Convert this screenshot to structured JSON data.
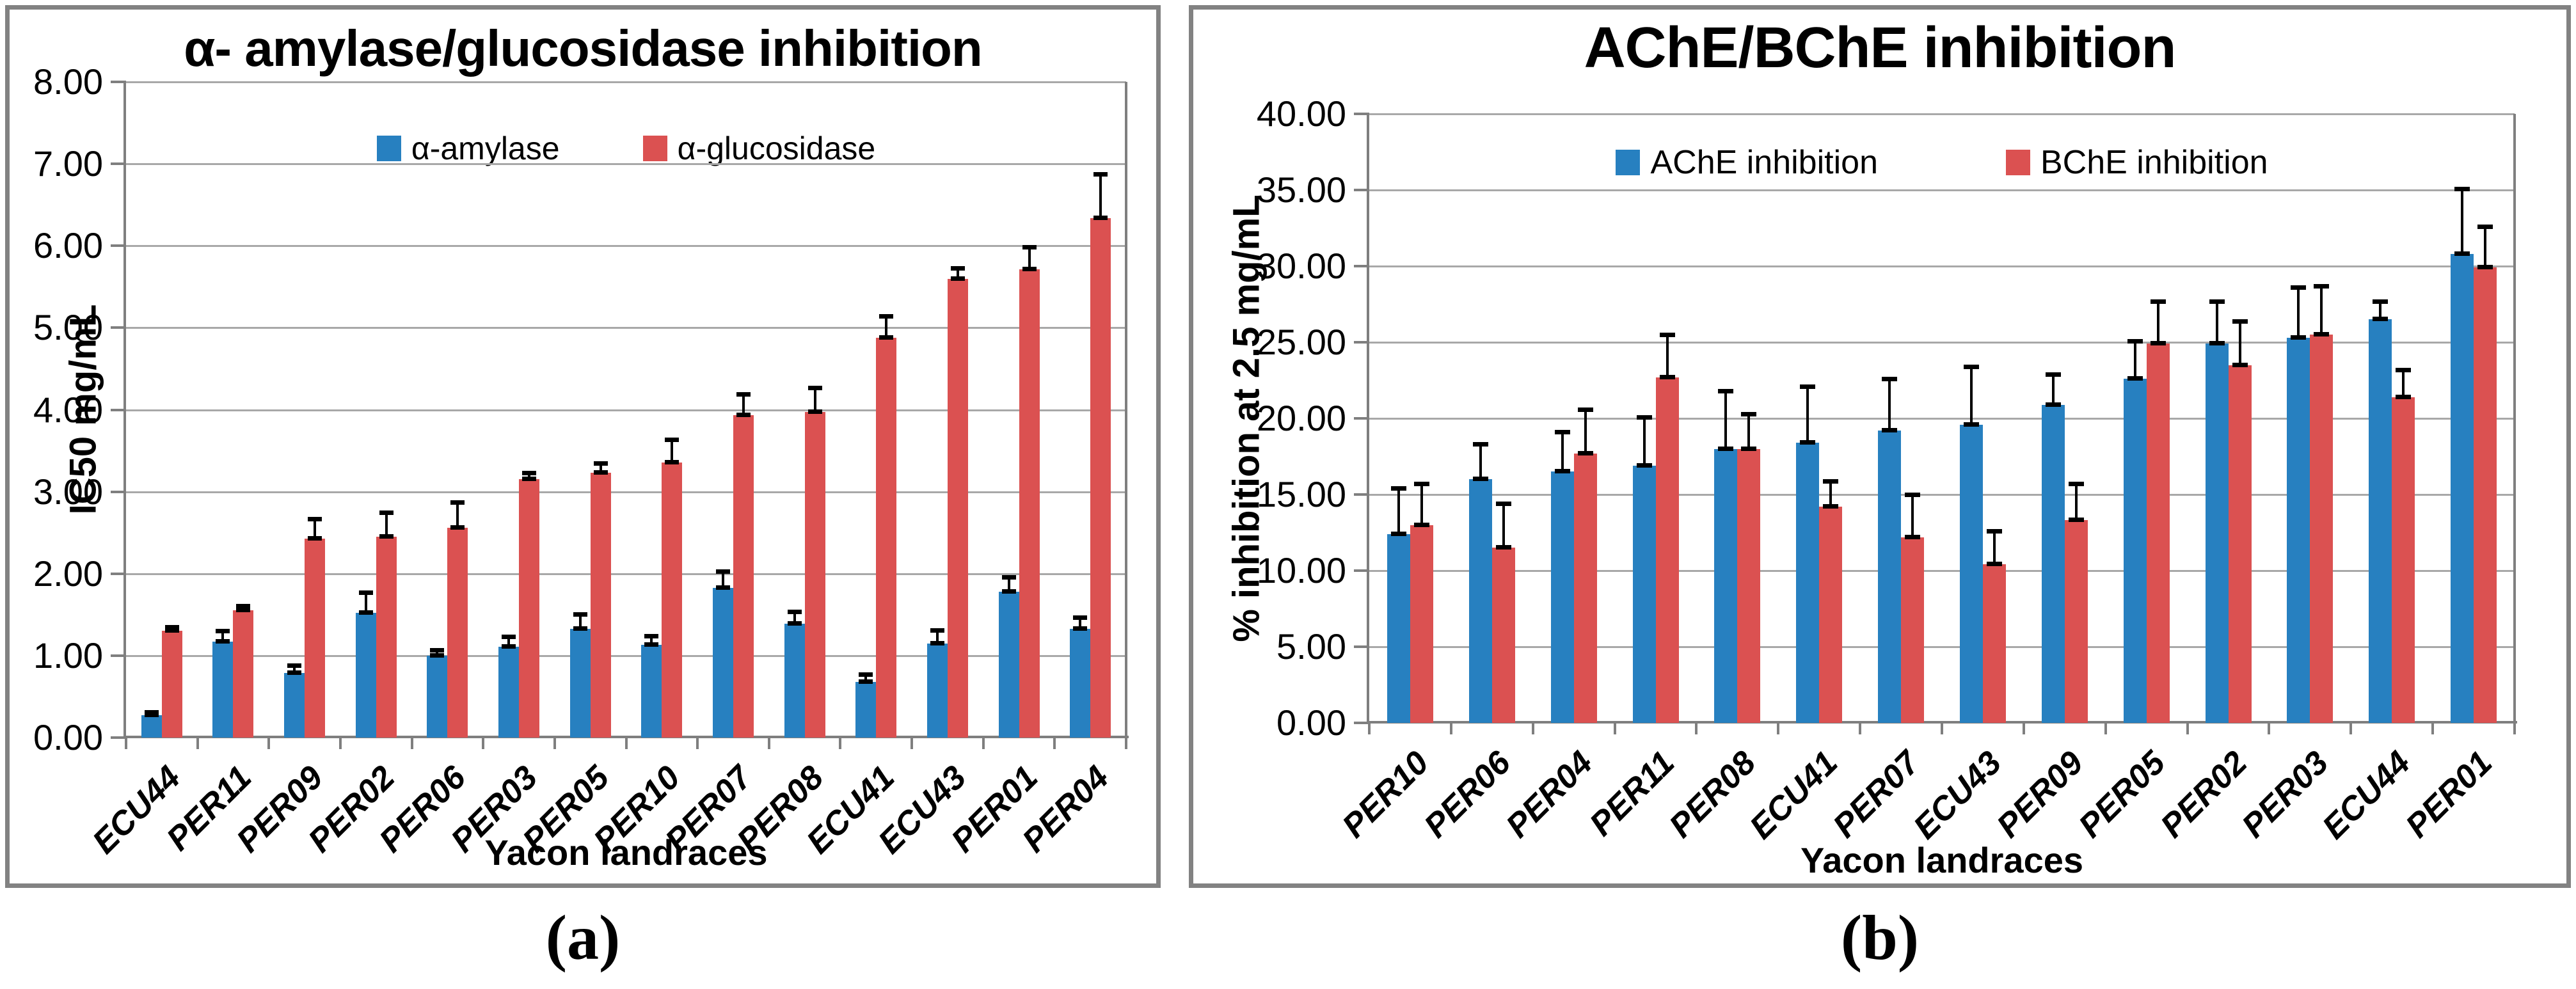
{
  "page": {
    "background": "#FFFFFF",
    "panel_border_color": "#828282",
    "grid_color": "#A8A8A8",
    "axis_color": "#7F7F7F",
    "error_bar_color": "#000000",
    "series_blue": "#2780C0",
    "series_red": "#DB5151"
  },
  "chart_data": [
    {
      "type": "bar",
      "title": "α- amylase/glucosidase inhibition",
      "caption": "(a)",
      "xlabel": "Yacon landraces",
      "ylabel": "IC50 mg/mL",
      "ylim": [
        0,
        8
      ],
      "ytick_step": 1,
      "ytick_decimals": 2,
      "grid": true,
      "legend_position": "top-center",
      "categories": [
        "ECU44",
        "PER11",
        "PER09",
        "PER02",
        "PER06",
        "PER03",
        "PER05",
        "PER10",
        "PER07",
        "PER08",
        "ECU41",
        "ECU43",
        "PER01",
        "PER04"
      ],
      "series": [
        {
          "name": "α-amylase",
          "color": "#2780C0",
          "values": [
            0.27,
            1.17,
            0.79,
            1.52,
            1.0,
            1.11,
            1.33,
            1.13,
            1.83,
            1.39,
            0.68,
            1.15,
            1.78,
            1.33
          ],
          "errors": [
            0.04,
            0.13,
            0.09,
            0.25,
            0.07,
            0.12,
            0.18,
            0.11,
            0.2,
            0.15,
            0.09,
            0.16,
            0.18,
            0.14
          ]
        },
        {
          "name": "α-glucosidase",
          "color": "#DB5151",
          "values": [
            1.3,
            1.55,
            2.43,
            2.45,
            2.56,
            3.15,
            3.23,
            3.36,
            3.93,
            3.97,
            4.88,
            5.6,
            5.71,
            6.34
          ],
          "errors": [
            0.05,
            0.06,
            0.24,
            0.3,
            0.31,
            0.08,
            0.12,
            0.28,
            0.26,
            0.3,
            0.26,
            0.13,
            0.28,
            0.54
          ]
        }
      ]
    },
    {
      "type": "bar",
      "title": "AChE/BChE inhibition",
      "caption": "(b)",
      "xlabel": "Yacon landraces",
      "ylabel": "% inhibition at 2.5 mg/mL",
      "ylim": [
        0,
        40
      ],
      "ytick_step": 5,
      "ytick_decimals": 2,
      "grid": true,
      "legend_position": "top-center",
      "categories": [
        "PER10",
        "PER06",
        "PER04",
        "PER11",
        "PER08",
        "ECU41",
        "PER07",
        "ECU43",
        "PER09",
        "PER05",
        "PER02",
        "PER03",
        "ECU44",
        "PER01"
      ],
      "series": [
        {
          "name": "AChE inhibition",
          "color": "#2780C0",
          "values": [
            12.4,
            16.0,
            16.5,
            16.9,
            18.0,
            18.4,
            19.2,
            19.6,
            20.9,
            22.6,
            24.9,
            25.3,
            26.5,
            30.8
          ],
          "errors": [
            3.0,
            2.3,
            2.6,
            3.2,
            3.8,
            3.7,
            3.4,
            3.8,
            2.0,
            2.5,
            2.8,
            3.3,
            1.2,
            4.3
          ]
        },
        {
          "name": "BChE inhibition",
          "color": "#DB5151",
          "values": [
            13.0,
            11.5,
            17.7,
            22.7,
            18.0,
            14.2,
            12.2,
            10.4,
            13.3,
            24.9,
            23.5,
            25.5,
            21.4,
            29.9
          ],
          "errors": [
            2.7,
            2.9,
            2.9,
            2.8,
            2.3,
            1.7,
            2.8,
            2.2,
            2.4,
            2.8,
            2.9,
            3.2,
            1.8,
            2.7
          ]
        }
      ]
    }
  ]
}
